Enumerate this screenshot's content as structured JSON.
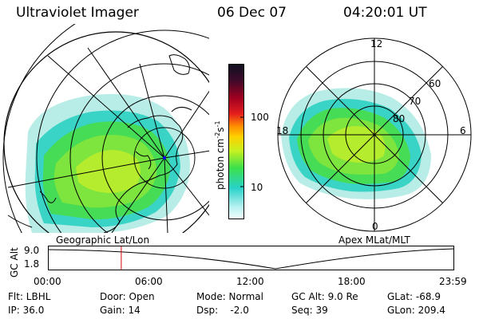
{
  "header": {
    "instrument": "Ultraviolet Imager",
    "date": "06 Dec 07",
    "time": "04:20:01 UT"
  },
  "left_map": {
    "caption": "Geographic Lat/Lon"
  },
  "right_map": {
    "caption": "Apex MLat/MLT",
    "mlt_labels": {
      "top": "12",
      "left": "18",
      "right": "6",
      "bottom": "0"
    },
    "lat_labels": [
      "60",
      "70",
      "80"
    ]
  },
  "colorbar": {
    "unit_label": "photon cm",
    "unit_exp1": "-2",
    "unit_mid": "s",
    "unit_exp2": "-1",
    "ticks": [
      "100",
      "10"
    ],
    "scale": "log",
    "colors_top_to_bottom": [
      "#111122",
      "#3b0a2a",
      "#a00020",
      "#e41e1e",
      "#ff8c00",
      "#ffd200",
      "#c6f020",
      "#3ce04a",
      "#28d2c8",
      "#b4f0f0",
      "#f4ffff"
    ]
  },
  "timeline": {
    "y_label": "GC Alt",
    "y_ticks": [
      "9.0",
      "1.8"
    ],
    "x_ticks": [
      "00:00",
      "06:00",
      "12:00",
      "18:00",
      "23:59"
    ],
    "x_range_hours": [
      0,
      24
    ],
    "y_range_re": [
      1.8,
      9.0
    ],
    "current_time_hours": 4.334,
    "marker_color": "#dd0000"
  },
  "info": {
    "flt": "Flt: LBHL",
    "ip": "IP: 36.0",
    "door": "Door: Open",
    "gain": "Gain: 14",
    "mode": "Mode: Normal",
    "dsp": "Dsp:    -2.0",
    "gcalt": "GC Alt: 9.0 Re",
    "seq": "Seq: 39",
    "glat": "GLat: -68.9",
    "glon": "GLon: 209.4"
  }
}
